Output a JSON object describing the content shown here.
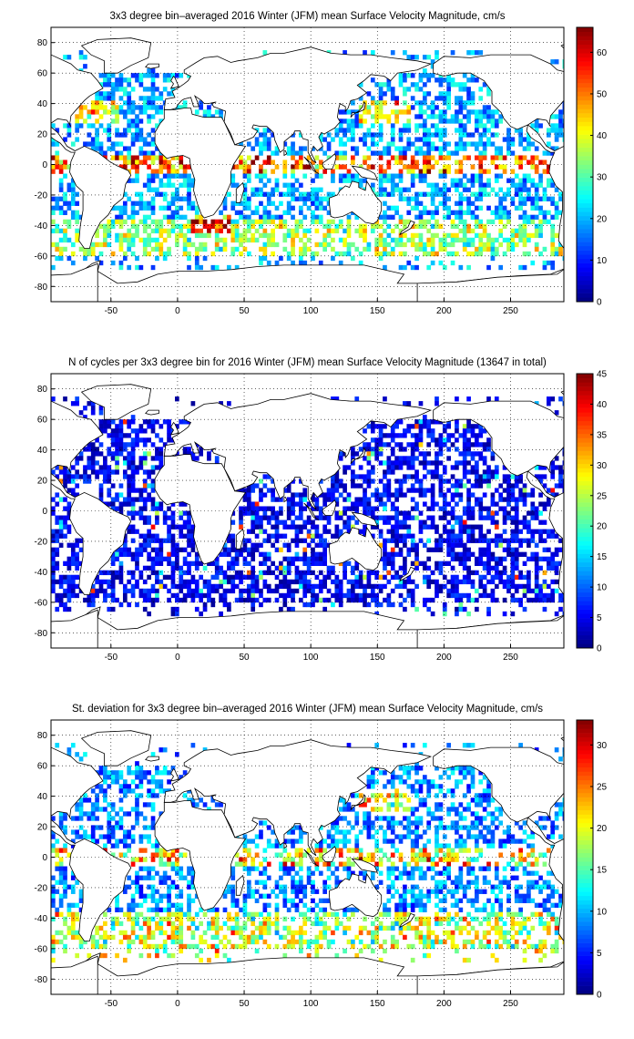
{
  "chart_data": [
    {
      "type": "heatmap",
      "title": "3x3 degree bin–averaged 2016 Winter (JFM) mean Surface Velocity Magnitude, cm/s",
      "xlabel": "",
      "ylabel": "",
      "x_ticks": [
        "-50",
        "0",
        "50",
        "100",
        "150",
        "200",
        "250"
      ],
      "y_ticks": [
        "80",
        "60",
        "40",
        "20",
        "0",
        "-20",
        "-40",
        "-60",
        "-80"
      ],
      "xlim": [
        -95,
        290
      ],
      "ylim": [
        -90,
        90
      ],
      "grid": true,
      "colorbar": {
        "min": 0,
        "max": 66,
        "ticks": [
          "0",
          "10",
          "20",
          "30",
          "40",
          "50",
          "60"
        ],
        "colormap": "jet"
      },
      "bin_size_deg": 3
    },
    {
      "type": "heatmap",
      "title": "N of cycles per 3x3 degree bin for 2016 Winter (JFM) mean Surface Velocity Magnitude (13647 in total)",
      "xlabel": "",
      "ylabel": "",
      "x_ticks": [
        "-50",
        "0",
        "50",
        "100",
        "150",
        "200",
        "250"
      ],
      "y_ticks": [
        "80",
        "60",
        "40",
        "20",
        "0",
        "-20",
        "-40",
        "-60",
        "-80"
      ],
      "xlim": [
        -95,
        290
      ],
      "ylim": [
        -90,
        90
      ],
      "grid": true,
      "colorbar": {
        "min": 0,
        "max": 45,
        "ticks": [
          "0",
          "5",
          "10",
          "15",
          "20",
          "25",
          "30",
          "35",
          "40",
          "45"
        ],
        "colormap": "jet"
      },
      "bin_size_deg": 3
    },
    {
      "type": "heatmap",
      "title": "St. deviation for 3x3 degree bin–averaged 2016 Winter (JFM) mean Surface Velocity Magnitude, cm/s",
      "xlabel": "",
      "ylabel": "",
      "x_ticks": [
        "-50",
        "0",
        "50",
        "100",
        "150",
        "200",
        "250"
      ],
      "y_ticks": [
        "80",
        "60",
        "40",
        "20",
        "0",
        "-20",
        "-40",
        "-60",
        "-80"
      ],
      "xlim": [
        -95,
        290
      ],
      "ylim": [
        -90,
        90
      ],
      "grid": true,
      "colorbar": {
        "min": 0,
        "max": 33,
        "ticks": [
          "0",
          "5",
          "10",
          "15",
          "20",
          "25",
          "30"
        ],
        "colormap": "jet"
      },
      "bin_size_deg": 3
    }
  ]
}
